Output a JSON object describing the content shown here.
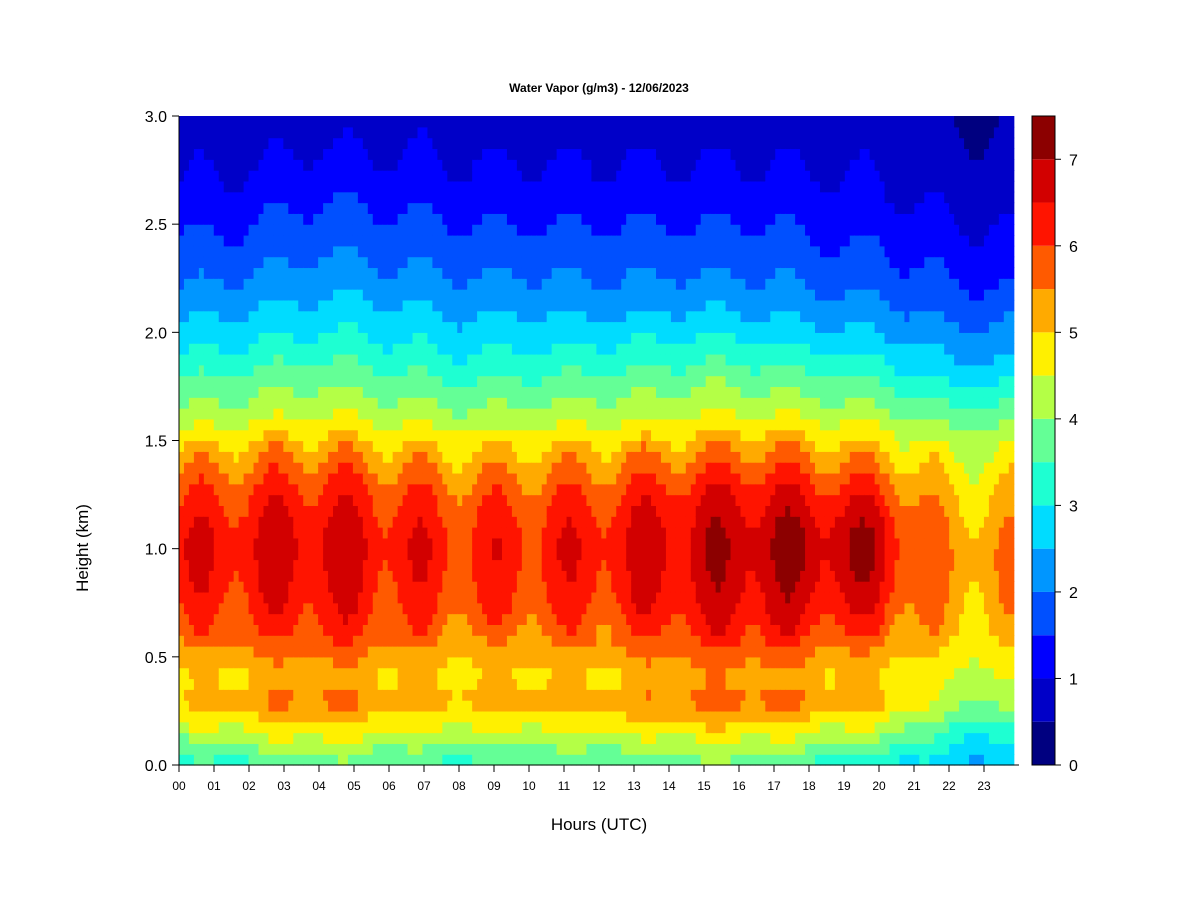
{
  "chart_data": {
    "type": "heatmap",
    "title": "Water Vapor (g/m3) - 12/06/2023",
    "xlabel": "Hours (UTC)",
    "ylabel": "Height (km)",
    "x_ticks": [
      "00",
      "01",
      "02",
      "03",
      "04",
      "05",
      "06",
      "07",
      "08",
      "09",
      "10",
      "11",
      "12",
      "13",
      "14",
      "15",
      "16",
      "17",
      "18",
      "19",
      "20",
      "21",
      "22",
      "23"
    ],
    "xlim": [
      0,
      24
    ],
    "y_ticks": [
      "0.0",
      "0.5",
      "1.0",
      "1.5",
      "2.0",
      "2.5",
      "3.0"
    ],
    "ylim": [
      0,
      3.0
    ],
    "colorbar": {
      "label_ticks": [
        "0",
        "1",
        "2",
        "3",
        "4",
        "5",
        "6",
        "7"
      ],
      "range": [
        0,
        7.5
      ],
      "levels": [
        0,
        0.5,
        1,
        1.5,
        2,
        2.5,
        3,
        3.5,
        4,
        4.5,
        5,
        5.5,
        6,
        6.5,
        7,
        7.5
      ],
      "colors": [
        "#000080",
        "#0000C8",
        "#0000FF",
        "#0050FF",
        "#0096FF",
        "#00DCFF",
        "#1EFFD2",
        "#64FF96",
        "#B4FF46",
        "#FFF000",
        "#FFAA00",
        "#FF5A00",
        "#FF1400",
        "#D20000",
        "#8C0000"
      ]
    },
    "heights_km": [
      0.0,
      0.1,
      0.2,
      0.3,
      0.4,
      0.5,
      0.6,
      0.7,
      0.8,
      0.9,
      1.0,
      1.1,
      1.2,
      1.3,
      1.4,
      1.5,
      1.6,
      1.7,
      1.8,
      1.9,
      2.0,
      2.1,
      2.2,
      2.3,
      2.4,
      2.5,
      2.6,
      2.7,
      2.8,
      2.9,
      3.0
    ],
    "hours_utc": [
      0,
      1,
      2,
      3,
      4,
      5,
      6,
      7,
      8,
      9,
      10,
      11,
      12,
      13,
      14,
      15,
      16,
      17,
      18,
      19,
      20,
      21,
      22,
      23
    ],
    "values_by_hour": [
      [
        3.2,
        3.6,
        4.6,
        5.0,
        4.8,
        5.1,
        5.6,
        5.9,
        6.1,
        6.3,
        6.4,
        6.3,
        6.0,
        5.7,
        5.3,
        4.8,
        4.2,
        3.8,
        3.4,
        3.0,
        2.7,
        2.3,
        2.0,
        1.8,
        1.6,
        1.4,
        1.2,
        1.0,
        0.9,
        0.8,
        0.7
      ],
      [
        3.3,
        3.9,
        4.7,
        5.2,
        4.9,
        5.2,
        5.7,
        6.0,
        6.2,
        6.3,
        6.4,
        6.3,
        6.1,
        5.8,
        5.4,
        4.9,
        4.3,
        3.9,
        3.5,
        3.1,
        2.7,
        2.4,
        2.1,
        1.8,
        1.6,
        1.4,
        1.2,
        1.0,
        0.9,
        0.8,
        0.7
      ],
      [
        3.4,
        4.1,
        4.8,
        5.4,
        5.0,
        5.4,
        5.9,
        6.1,
        6.3,
        6.4,
        6.5,
        6.4,
        6.2,
        5.9,
        5.5,
        5.0,
        4.4,
        4.0,
        3.6,
        3.2,
        2.8,
        2.5,
        2.2,
        1.9,
        1.7,
        1.5,
        1.3,
        1.1,
        0.9,
        0.8,
        0.7
      ],
      [
        3.6,
        4.3,
        5.0,
        5.6,
        5.1,
        5.5,
        6.0,
        6.2,
        6.4,
        6.5,
        6.6,
        6.5,
        6.3,
        6.0,
        5.6,
        5.1,
        4.5,
        4.1,
        3.7,
        3.3,
        2.9,
        2.6,
        2.3,
        2.0,
        1.8,
        1.6,
        1.4,
        1.2,
        1.0,
        0.9,
        0.7
      ],
      [
        3.8,
        4.4,
        5.1,
        5.7,
        5.2,
        5.6,
        6.1,
        6.3,
        6.5,
        6.6,
        6.7,
        6.6,
        6.4,
        6.1,
        5.7,
        5.2,
        4.6,
        4.2,
        3.8,
        3.4,
        3.0,
        2.7,
        2.4,
        2.2,
        1.9,
        1.7,
        1.5,
        1.3,
        1.1,
        0.9,
        0.8
      ],
      [
        3.7,
        4.3,
        5.0,
        5.6,
        5.1,
        5.5,
        6.0,
        6.2,
        6.4,
        6.5,
        6.6,
        6.5,
        6.3,
        6.0,
        5.6,
        5.1,
        4.5,
        4.1,
        3.7,
        3.3,
        3.0,
        2.7,
        2.4,
        2.1,
        1.9,
        1.7,
        1.5,
        1.3,
        1.1,
        0.9,
        0.8
      ],
      [
        3.5,
        4.2,
        4.8,
        5.3,
        5.0,
        5.3,
        5.8,
        6.0,
        6.2,
        6.3,
        6.4,
        6.3,
        6.1,
        5.8,
        5.4,
        5.0,
        4.4,
        4.0,
        3.6,
        3.2,
        2.9,
        2.6,
        2.3,
        2.0,
        1.8,
        1.6,
        1.4,
        1.2,
        1.0,
        0.9,
        0.8
      ],
      [
        3.4,
        4.0,
        4.7,
        5.2,
        4.9,
        5.2,
        5.6,
        5.9,
        6.1,
        6.2,
        6.3,
        6.2,
        6.0,
        5.7,
        5.3,
        4.9,
        4.3,
        3.9,
        3.5,
        3.1,
        2.8,
        2.5,
        2.2,
        2.0,
        1.8,
        1.6,
        1.4,
        1.2,
        1.0,
        0.9,
        0.8
      ],
      [
        3.4,
        4.0,
        4.7,
        5.2,
        4.9,
        5.1,
        5.5,
        5.8,
        6.0,
        6.1,
        6.2,
        6.1,
        5.9,
        5.6,
        5.2,
        4.8,
        4.2,
        3.8,
        3.4,
        3.0,
        2.7,
        2.4,
        2.2,
        1.9,
        1.7,
        1.5,
        1.3,
        1.1,
        1.0,
        0.9,
        0.7
      ],
      [
        3.4,
        4.0,
        4.7,
        5.2,
        4.9,
        5.1,
        5.5,
        5.8,
        6.0,
        6.1,
        6.2,
        6.1,
        5.9,
        5.6,
        5.2,
        4.8,
        4.2,
        3.8,
        3.4,
        3.0,
        2.7,
        2.4,
        2.1,
        1.9,
        1.7,
        1.5,
        1.3,
        1.1,
        1.0,
        0.8,
        0.7
      ],
      [
        3.5,
        4.1,
        4.8,
        5.3,
        5.0,
        5.2,
        5.6,
        5.9,
        6.1,
        6.2,
        6.3,
        6.2,
        6.0,
        5.7,
        5.3,
        4.9,
        4.3,
        3.9,
        3.5,
        3.1,
        2.8,
        2.5,
        2.2,
        1.9,
        1.7,
        1.5,
        1.3,
        1.1,
        1.0,
        0.8,
        0.7
      ],
      [
        3.5,
        4.1,
        4.7,
        5.2,
        4.9,
        5.2,
        5.6,
        5.9,
        6.1,
        6.2,
        6.3,
        6.2,
        6.0,
        5.7,
        5.3,
        4.9,
        4.3,
        3.9,
        3.5,
        3.1,
        2.7,
        2.4,
        2.1,
        1.9,
        1.7,
        1.5,
        1.3,
        1.1,
        1.0,
        0.8,
        0.7
      ],
      [
        3.6,
        4.2,
        4.8,
        5.3,
        4.9,
        5.3,
        5.7,
        6.0,
        6.2,
        6.3,
        6.4,
        6.3,
        6.1,
        5.8,
        5.4,
        5.0,
        4.4,
        4.0,
        3.6,
        3.2,
        2.8,
        2.4,
        2.1,
        1.9,
        1.7,
        1.5,
        1.3,
        1.1,
        1.0,
        0.8,
        0.7
      ],
      [
        3.6,
        4.2,
        4.8,
        5.4,
        5.0,
        5.4,
        5.8,
        6.1,
        6.3,
        6.4,
        6.5,
        6.4,
        6.2,
        5.9,
        5.5,
        5.0,
        4.4,
        4.0,
        3.6,
        3.2,
        2.8,
        2.4,
        2.1,
        1.9,
        1.7,
        1.5,
        1.3,
        1.1,
        1.0,
        0.8,
        0.7
      ],
      [
        3.7,
        4.3,
        5.0,
        5.6,
        5.2,
        5.6,
        6.0,
        6.3,
        6.5,
        6.6,
        6.7,
        6.6,
        6.4,
        6.1,
        5.6,
        5.1,
        4.5,
        4.1,
        3.7,
        3.3,
        2.9,
        2.5,
        2.2,
        1.9,
        1.7,
        1.5,
        1.3,
        1.1,
        1.0,
        0.8,
        0.7
      ],
      [
        3.8,
        4.4,
        5.1,
        5.7,
        5.3,
        5.7,
        6.1,
        6.4,
        6.6,
        6.7,
        6.8,
        6.7,
        6.5,
        6.2,
        5.7,
        5.2,
        4.6,
        4.2,
        3.8,
        3.3,
        2.9,
        2.5,
        2.2,
        1.9,
        1.7,
        1.5,
        1.3,
        1.1,
        1.0,
        0.8,
        0.7
      ],
      [
        3.8,
        4.4,
        5.1,
        5.7,
        5.3,
        5.7,
        6.2,
        6.5,
        6.7,
        6.8,
        6.9,
        6.8,
        6.6,
        6.3,
        5.8,
        5.2,
        4.6,
        4.2,
        3.8,
        3.3,
        2.9,
        2.5,
        2.2,
        1.9,
        1.7,
        1.5,
        1.3,
        1.1,
        1.0,
        0.8,
        0.7
      ],
      [
        3.7,
        4.3,
        5.1,
        5.7,
        5.3,
        5.7,
        6.2,
        6.6,
        6.8,
        6.9,
        7.0,
        6.9,
        6.7,
        6.3,
        5.8,
        5.2,
        4.6,
        4.1,
        3.7,
        3.2,
        2.8,
        2.4,
        2.1,
        1.9,
        1.7,
        1.5,
        1.3,
        1.1,
        1.0,
        0.8,
        0.7
      ],
      [
        3.4,
        4.1,
        4.9,
        5.5,
        5.1,
        5.5,
        6.0,
        6.4,
        6.6,
        6.8,
        6.9,
        6.8,
        6.5,
        6.1,
        5.6,
        5.1,
        4.5,
        4.0,
        3.6,
        3.1,
        2.7,
        2.3,
        2.0,
        1.8,
        1.6,
        1.4,
        1.2,
        1.1,
        0.9,
        0.8,
        0.7
      ],
      [
        3.2,
        3.9,
        4.7,
        5.3,
        5.0,
        5.3,
        5.9,
        6.3,
        6.6,
        6.8,
        6.9,
        6.8,
        6.5,
        6.0,
        5.5,
        5.0,
        4.4,
        3.9,
        3.5,
        3.0,
        2.6,
        2.2,
        1.9,
        1.7,
        1.5,
        1.3,
        1.2,
        1.0,
        0.9,
        0.8,
        0.7
      ],
      [
        3.1,
        3.8,
        4.6,
        5.2,
        4.9,
        5.2,
        5.8,
        6.2,
        6.5,
        6.7,
        6.8,
        6.7,
        6.4,
        5.9,
        5.4,
        4.9,
        4.3,
        3.8,
        3.4,
        2.9,
        2.5,
        2.2,
        1.9,
        1.7,
        1.5,
        1.3,
        1.1,
        1.0,
        0.9,
        0.8,
        0.7
      ],
      [
        2.9,
        3.5,
        4.2,
        4.8,
        4.8,
        5.0,
        5.3,
        5.6,
        5.8,
        5.9,
        6.0,
        5.9,
        5.7,
        5.3,
        5.0,
        4.6,
        4.1,
        3.6,
        3.1,
        2.7,
        2.3,
        2.0,
        1.8,
        1.5,
        1.3,
        1.2,
        1.0,
        0.9,
        0.8,
        0.7,
        0.6
      ],
      [
        2.6,
        3.0,
        3.6,
        4.2,
        4.4,
        4.7,
        5.0,
        5.2,
        5.3,
        5.4,
        5.4,
        5.3,
        5.1,
        4.9,
        4.6,
        4.3,
        3.8,
        3.3,
        2.8,
        2.4,
        2.1,
        1.8,
        1.6,
        1.4,
        1.2,
        1.0,
        0.9,
        0.8,
        0.7,
        0.6,
        0.5
      ],
      [
        2.5,
        2.9,
        3.5,
        4.1,
        4.4,
        4.7,
        5.0,
        5.2,
        5.3,
        5.4,
        5.4,
        5.3,
        5.1,
        4.9,
        4.6,
        4.3,
        3.8,
        3.3,
        2.8,
        2.4,
        2.1,
        1.8,
        1.5,
        1.3,
        1.1,
        1.0,
        0.8,
        0.7,
        0.6,
        0.5,
        0.4
      ]
    ]
  }
}
